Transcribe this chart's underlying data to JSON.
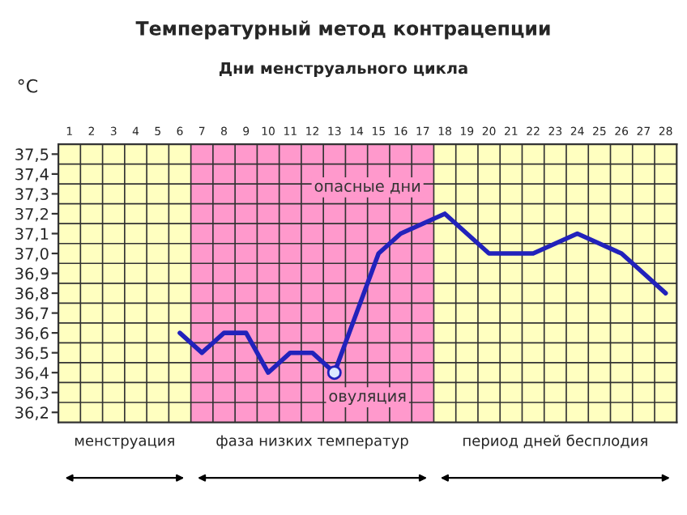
{
  "chart_data": {
    "type": "line",
    "title": "Температурный метод контрацепции",
    "xlabel": "Дни менструального цикла",
    "ylabel": "°C",
    "categories": [
      "1",
      "2",
      "3",
      "4",
      "5",
      "6",
      "7",
      "8",
      "9",
      "10",
      "11",
      "12",
      "13",
      "14",
      "15",
      "16",
      "17",
      "18",
      "19",
      "20",
      "21",
      "22",
      "23",
      "24",
      "25",
      "26",
      "27",
      "28"
    ],
    "series": [
      {
        "color": "#2222bb",
        "values": [
          null,
          null,
          null,
          null,
          null,
          36.6,
          36.5,
          36.6,
          36.6,
          36.4,
          36.5,
          36.5,
          36.4,
          36.7,
          37.0,
          37.1,
          37.15,
          37.2,
          37.1,
          37.0,
          37.0,
          37.0,
          37.05,
          37.1,
          37.05,
          37.0,
          36.9,
          36.8
        ]
      },
      {
        "type": "scatter",
        "color": "#dde8ff",
        "x": [
          "13"
        ],
        "values": [
          36.4
        ],
        "marker": "circle"
      }
    ],
    "ylim": [
      36.15,
      37.55
    ],
    "yticks": [
      {
        "value": 36.2,
        "label": "36,2"
      },
      {
        "value": 36.3,
        "label": "36,3"
      },
      {
        "value": 36.4,
        "label": "36,4"
      },
      {
        "value": 36.5,
        "label": "36,5"
      },
      {
        "value": 36.6,
        "label": "36,6"
      },
      {
        "value": 36.7,
        "label": "36,7"
      },
      {
        "value": 36.8,
        "label": "36,8"
      },
      {
        "value": 36.9,
        "label": "36,9"
      },
      {
        "value": 37.0,
        "label": "37,0"
      },
      {
        "value": 37.1,
        "label": "37,1"
      },
      {
        "value": 37.2,
        "label": "37,2"
      },
      {
        "value": 37.3,
        "label": "37,3"
      },
      {
        "value": 37.4,
        "label": "37,4"
      },
      {
        "value": 37.5,
        "label": "37,5"
      }
    ],
    "grid": true,
    "bands": [
      {
        "axis": "x",
        "from": "1",
        "to": "6",
        "label": "менструация",
        "color": "#ffffc0"
      },
      {
        "axis": "x",
        "from": "7",
        "to": "17",
        "label": "фаза низких температур",
        "color": "#ff99cc"
      },
      {
        "axis": "x",
        "from": "18",
        "to": "28",
        "label": "период дней бесплодия",
        "color": "#ffffc0"
      }
    ],
    "annotations": [
      "опасные дни",
      "овуляция"
    ]
  }
}
